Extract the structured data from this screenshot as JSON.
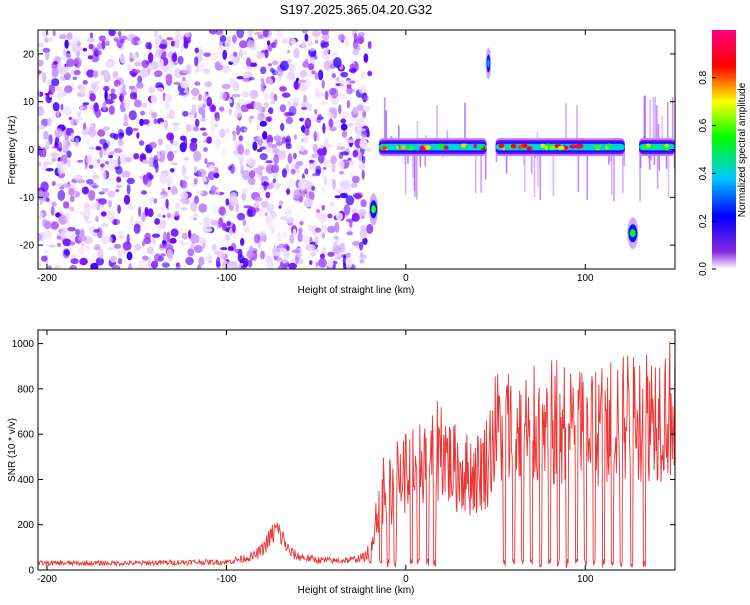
{
  "title": "S197.2025.365.04.20.G32",
  "chart_data": [
    {
      "type": "heatmap",
      "title": "S197.2025.365.04.20.G32",
      "xlabel": "Height of straight line (km)",
      "ylabel": "Frequency (Hz)",
      "xlim": [
        -205,
        150
      ],
      "ylim": [
        -25,
        25
      ],
      "xticks": [
        -200,
        -100,
        0,
        100
      ],
      "yticks": [
        -20,
        -10,
        0,
        10,
        20
      ],
      "colorbar": {
        "label": "Normalized spectral amplitude",
        "range": [
          0,
          1
        ],
        "ticks": [
          "0.0",
          "0.2",
          "0.4",
          "0.6",
          "0.8"
        ],
        "colors": [
          "#ffffff",
          "#7b00ff",
          "#0000ff",
          "#00c8ff",
          "#00ff00",
          "#ffff00",
          "#ff0000",
          "#ff0080"
        ]
      },
      "segments": [
        {
          "label": "noise",
          "x_from": -205,
          "x_to": -20,
          "freq_center": 0,
          "amplitude": 0.15
        },
        {
          "label": "tone_a",
          "x_from": -15,
          "x_to": 45,
          "freq_center": 0.5,
          "amplitude": 0.95
        },
        {
          "label": "tone_b",
          "x_from": 50,
          "x_to": 122,
          "freq_center": 0.5,
          "amplitude": 0.9
        },
        {
          "label": "tone_c",
          "x_from": 130,
          "x_to": 150,
          "freq_center": 0.5,
          "amplitude": 0.7
        },
        {
          "label": "low_blob_1",
          "x_from": -20,
          "x_to": -16,
          "freq_center": -12.5,
          "amplitude": 0.6
        },
        {
          "label": "low_blob_2",
          "x_from": 124,
          "x_to": 129,
          "freq_center": -17.5,
          "amplitude": 0.55
        },
        {
          "label": "high_blob",
          "x_from": 45,
          "x_to": 47,
          "freq_center": 18,
          "amplitude": 0.4
        }
      ]
    },
    {
      "type": "line",
      "xlabel": "Height of straight line (km)",
      "ylabel": "SNR (10 * v/v)",
      "xlim": [
        -205,
        150
      ],
      "ylim": [
        0,
        1060
      ],
      "xticks": [
        -200,
        -100,
        0,
        100
      ],
      "yticks": [
        0,
        200,
        400,
        600,
        800,
        1000
      ],
      "color": "#ee3333",
      "x": [
        -205,
        -180,
        -150,
        -120,
        -100,
        -85,
        -80,
        -75,
        -72,
        -68,
        -65,
        -60,
        -50,
        -40,
        -30,
        -22,
        -18,
        -15,
        -12,
        -10,
        -5,
        0,
        5,
        10,
        15,
        20,
        25,
        30,
        35,
        40,
        45,
        50,
        55,
        60,
        70,
        80,
        90,
        100,
        110,
        120,
        130,
        140,
        150
      ],
      "y": [
        30,
        30,
        30,
        35,
        35,
        60,
        90,
        150,
        180,
        130,
        80,
        60,
        45,
        40,
        45,
        60,
        180,
        300,
        380,
        330,
        400,
        440,
        460,
        500,
        520,
        560,
        460,
        440,
        420,
        430,
        480,
        620,
        640,
        600,
        620,
        640,
        650,
        660,
        660,
        680,
        700,
        700,
        720
      ],
      "dropouts": [
        -20,
        -14,
        -10,
        -6,
        3,
        7,
        12,
        16,
        55,
        60,
        65,
        70,
        75,
        80,
        85,
        90,
        95,
        100,
        105,
        110,
        115,
        120,
        126,
        133
      ]
    }
  ]
}
